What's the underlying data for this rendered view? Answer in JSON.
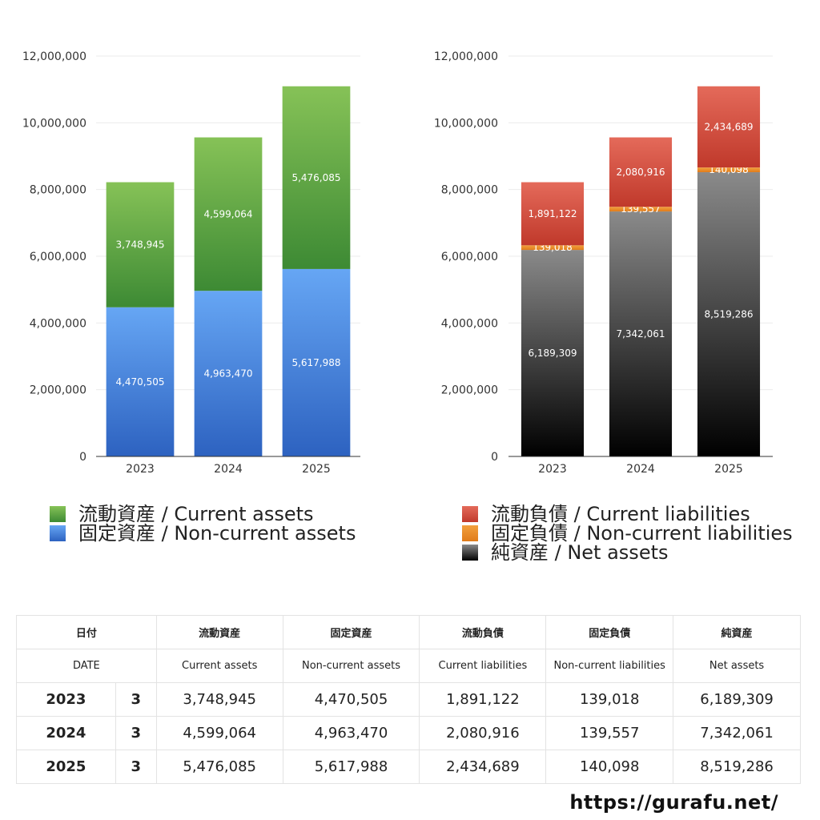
{
  "charts": {
    "colors": {
      "current_assets": [
        "#86c257",
        "#3d8a34"
      ],
      "noncurrent_assets": [
        "#66a6f4",
        "#2d62c0"
      ],
      "current_liabilities": [
        "#e46a5a",
        "#c0392b"
      ],
      "noncurrent_liabilities": [
        "#f2a03d",
        "#e07b1a"
      ],
      "net_assets": [
        "#8a8a8a",
        "#000000"
      ]
    }
  },
  "chart_data": [
    {
      "type": "bar",
      "stacked": true,
      "categories": [
        "2023",
        "2024",
        "2025"
      ],
      "ylim": [
        0,
        12000000
      ],
      "yticks": [
        "0",
        "2,000,000",
        "4,000,000",
        "6,000,000",
        "8,000,000",
        "10,000,000",
        "12,000,000"
      ],
      "series": [
        {
          "name": "固定資産 / Non-current assets",
          "values": [
            4470505,
            4963470,
            5617988
          ],
          "labels": [
            "4,470,505",
            "4,963,470",
            "5,617,988"
          ]
        },
        {
          "name": "流動資産 / Current assets",
          "values": [
            3748945,
            4599064,
            5476085
          ],
          "labels": [
            "3,748,945",
            "4,599,064",
            "5,476,085"
          ]
        }
      ],
      "legend": [
        "流動資産 / Current assets",
        "固定資産 / Non-current assets"
      ]
    },
    {
      "type": "bar",
      "stacked": true,
      "categories": [
        "2023",
        "2024",
        "2025"
      ],
      "ylim": [
        0,
        12000000
      ],
      "yticks": [
        "0",
        "2,000,000",
        "4,000,000",
        "6,000,000",
        "8,000,000",
        "10,000,000",
        "12,000,000"
      ],
      "series": [
        {
          "name": "純資産 / Net assets",
          "values": [
            6189309,
            7342061,
            8519286
          ],
          "labels": [
            "6,189,309",
            "7,342,061",
            "8,519,286"
          ]
        },
        {
          "name": "固定負債 / Non-current liabilities",
          "values": [
            139018,
            139557,
            140098
          ],
          "labels": [
            "139,018",
            "139,557",
            "140,098"
          ]
        },
        {
          "name": "流動負債 / Current liabilities",
          "values": [
            1891122,
            2080916,
            2434689
          ],
          "labels": [
            "1,891,122",
            "2,080,916",
            "2,434,689"
          ]
        }
      ],
      "legend": [
        "流動負債 / Current liabilities",
        "固定負債 / Non-current liabilities",
        "純資産 / Net assets"
      ]
    }
  ],
  "table": {
    "headers": [
      "日付",
      "流動資産",
      "固定資産",
      "流動負債",
      "固定負債",
      "純資産"
    ],
    "subheaders": [
      "DATE",
      "Current assets",
      "Non-current assets",
      "Current liabilities",
      "Non-current liabilities",
      "Net assets"
    ],
    "rows": [
      {
        "year": "2023",
        "month": "3",
        "values": [
          "3,748,945",
          "4,470,505",
          "1,891,122",
          "139,018",
          "6,189,309"
        ]
      },
      {
        "year": "2024",
        "month": "3",
        "values": [
          "4,599,064",
          "4,963,470",
          "2,080,916",
          "139,557",
          "7,342,061"
        ]
      },
      {
        "year": "2025",
        "month": "3",
        "values": [
          "5,476,085",
          "5,617,988",
          "2,434,689",
          "140,098",
          "8,519,286"
        ]
      }
    ]
  },
  "footer": {
    "site": "https://gurafu.net/"
  }
}
